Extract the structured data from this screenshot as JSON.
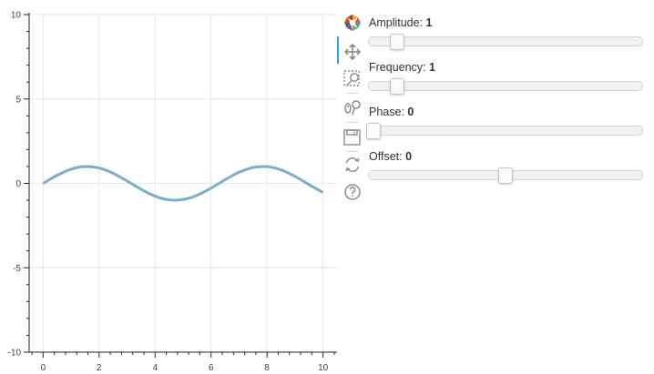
{
  "chart_data": {
    "type": "line",
    "title": "",
    "xlabel": "",
    "ylabel": "",
    "xlim": [
      -0.5,
      10.5
    ],
    "ylim": [
      -10,
      10
    ],
    "x_ticks": [
      0,
      2,
      4,
      6,
      8,
      10
    ],
    "y_ticks": [
      10,
      5,
      0,
      -5,
      -10
    ],
    "x_tick_labels": [
      "0",
      "2",
      "4",
      "6",
      "8",
      "10"
    ],
    "y_tick_labels": [
      "10",
      "5",
      "0",
      "-5",
      "-10"
    ],
    "grid": true,
    "series": [
      {
        "color": "#7aaecf",
        "x": [
          0,
          0.5,
          1,
          1.5,
          2,
          2.5,
          3,
          3.5,
          4,
          4.5,
          5,
          5.5,
          6,
          6.5,
          7,
          7.5,
          8,
          8.5,
          9,
          9.5,
          10
        ],
        "y": [
          0,
          0.479,
          0.841,
          0.997,
          0.909,
          0.598,
          0.141,
          -0.351,
          -0.757,
          -0.978,
          -0.959,
          -0.706,
          -0.279,
          0.215,
          0.657,
          0.938,
          0.989,
          0.798,
          0.412,
          -0.075,
          -0.544
        ]
      }
    ]
  },
  "toolbar": {
    "tools": [
      {
        "icon": "bokeh-logo-icon"
      },
      {
        "icon": "pan-icon",
        "active": true
      },
      {
        "icon": "box-zoom-icon"
      },
      {
        "icon": "wheel-zoom-icon"
      },
      {
        "icon": "save-icon"
      },
      {
        "icon": "reset-icon"
      },
      {
        "icon": "help-icon"
      }
    ]
  },
  "widgets": {
    "amplitude": {
      "label": "Amplitude: ",
      "value_text": "1",
      "value": 1,
      "min": 0.1,
      "max": 10
    },
    "frequency": {
      "label": "Frequency: ",
      "value_text": "1",
      "value": 1,
      "min": 0.1,
      "max": 10
    },
    "phase": {
      "label": "Phase: ",
      "value_text": "0",
      "value": 0,
      "min": 0,
      "max": 6.4
    },
    "offset": {
      "label": "Offset: ",
      "value_text": "0",
      "value": 0,
      "min": -5,
      "max": 5
    }
  }
}
